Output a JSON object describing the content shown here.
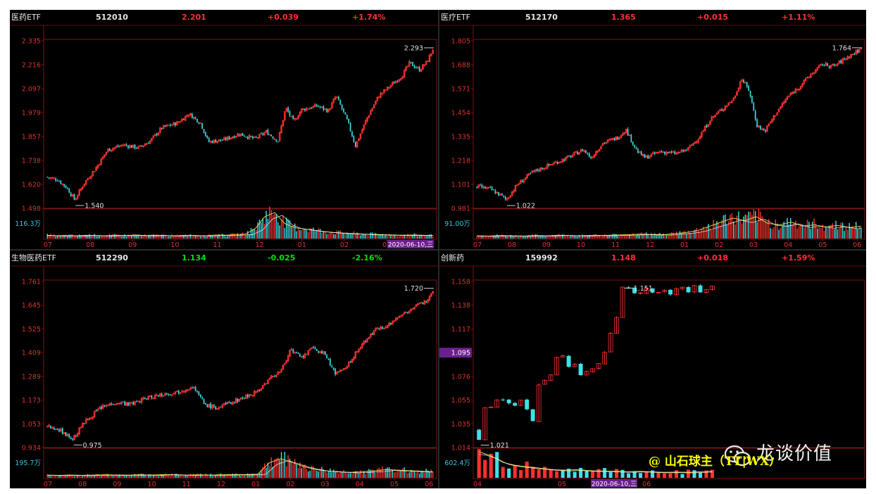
{
  "panels": [
    {
      "name": "医药ETF",
      "code": "512010",
      "price": "2.201",
      "change": "+0.039",
      "pct": "+1.74%",
      "dir": "up",
      "ytick_labels": [
        "2.335",
        "2.216",
        "2.097",
        "1.979",
        "1.857",
        "1.738",
        "1.620",
        "1.498"
      ],
      "yrange": [
        1.498,
        2.335
      ],
      "vol_label": "116.3万",
      "xticks": [
        "07",
        "08",
        "09",
        "10",
        "11",
        "12",
        "01",
        "02",
        "03",
        "04"
      ],
      "date_badge": "2020-06-10,三",
      "low": "1.540",
      "high": "2.293",
      "path": [
        [
          0,
          1.655
        ],
        [
          0.03,
          1.642
        ],
        [
          0.055,
          1.6
        ],
        [
          0.075,
          1.54
        ],
        [
          0.1,
          1.625
        ],
        [
          0.13,
          1.7
        ],
        [
          0.16,
          1.79
        ],
        [
          0.2,
          1.815
        ],
        [
          0.24,
          1.8
        ],
        [
          0.27,
          1.835
        ],
        [
          0.3,
          1.9
        ],
        [
          0.34,
          1.925
        ],
        [
          0.37,
          1.97
        ],
        [
          0.4,
          1.925
        ],
        [
          0.42,
          1.83
        ],
        [
          0.46,
          1.84
        ],
        [
          0.5,
          1.87
        ],
        [
          0.54,
          1.845
        ],
        [
          0.57,
          1.88
        ],
        [
          0.6,
          1.835
        ],
        [
          0.62,
          2.0
        ],
        [
          0.64,
          1.93
        ],
        [
          0.66,
          1.99
        ],
        [
          0.7,
          2.01
        ],
        [
          0.73,
          1.985
        ],
        [
          0.75,
          2.06
        ],
        [
          0.78,
          1.93
        ],
        [
          0.8,
          1.81
        ],
        [
          0.83,
          1.95
        ],
        [
          0.86,
          2.06
        ],
        [
          0.89,
          2.11
        ],
        [
          0.92,
          2.16
        ],
        [
          0.94,
          2.225
        ],
        [
          0.965,
          2.19
        ],
        [
          0.985,
          2.23
        ],
        [
          1.0,
          2.293
        ]
      ],
      "vol": [
        0.12,
        0.1,
        0.11,
        0.1,
        0.12,
        0.11,
        0.1,
        0.12,
        0.11,
        0.13,
        0.1,
        0.12,
        0.11,
        0.1,
        0.12,
        0.11,
        0.1,
        0.13,
        0.12,
        0.14,
        0.16,
        0.35,
        0.8,
        0.95,
        0.55,
        0.4,
        0.35,
        0.3,
        0.25,
        0.22,
        0.2,
        0.18,
        0.16,
        0.15,
        0.14,
        0.13,
        0.12,
        0.13,
        0.12,
        0.11
      ]
    },
    {
      "name": "医疗ETF",
      "code": "512170",
      "price": "1.365",
      "change": "+0.015",
      "pct": "+1.11%",
      "dir": "up",
      "ytick_labels": [
        "1.805",
        "1.688",
        "1.571",
        "1.454",
        "1.335",
        "1.218",
        "1.101",
        "0.981"
      ],
      "yrange": [
        0.981,
        1.805
      ],
      "vol_label": "91.00万",
      "xticks": [
        "07",
        "08",
        "09",
        "10",
        "11",
        "12",
        "01",
        "02",
        "03",
        "04",
        "05",
        "06"
      ],
      "low": "1.022",
      "high": "1.764",
      "path": [
        [
          0,
          1.09
        ],
        [
          0.04,
          1.075
        ],
        [
          0.07,
          1.04
        ],
        [
          0.08,
          1.022
        ],
        [
          0.11,
          1.1
        ],
        [
          0.15,
          1.16
        ],
        [
          0.2,
          1.2
        ],
        [
          0.24,
          1.23
        ],
        [
          0.28,
          1.27
        ],
        [
          0.3,
          1.23
        ],
        [
          0.33,
          1.3
        ],
        [
          0.37,
          1.33
        ],
        [
          0.39,
          1.37
        ],
        [
          0.42,
          1.26
        ],
        [
          0.44,
          1.23
        ],
        [
          0.48,
          1.26
        ],
        [
          0.52,
          1.25
        ],
        [
          0.55,
          1.27
        ],
        [
          0.58,
          1.33
        ],
        [
          0.61,
          1.42
        ],
        [
          0.64,
          1.47
        ],
        [
          0.67,
          1.52
        ],
        [
          0.69,
          1.62
        ],
        [
          0.71,
          1.56
        ],
        [
          0.73,
          1.39
        ],
        [
          0.75,
          1.36
        ],
        [
          0.78,
          1.45
        ],
        [
          0.81,
          1.53
        ],
        [
          0.84,
          1.58
        ],
        [
          0.87,
          1.64
        ],
        [
          0.9,
          1.69
        ],
        [
          0.93,
          1.68
        ],
        [
          0.96,
          1.72
        ],
        [
          1.0,
          1.764
        ]
      ],
      "vol": [
        0.1,
        0.09,
        0.11,
        0.1,
        0.09,
        0.11,
        0.1,
        0.12,
        0.11,
        0.1,
        0.12,
        0.11,
        0.13,
        0.14,
        0.16,
        0.15,
        0.14,
        0.18,
        0.22,
        0.3,
        0.45,
        0.6,
        0.75,
        0.65,
        0.8,
        0.55,
        0.5,
        0.6,
        0.45,
        0.5,
        0.42,
        0.48,
        0.4,
        0.45
      ]
    },
    {
      "name": "生物医药ETF",
      "code": "512290",
      "price": "1.134",
      "change": "-0.025",
      "pct": "-2.16%",
      "dir": "down",
      "ytick_labels": [
        "1.761",
        "1.645",
        "1.525",
        "1.409",
        "1.289",
        "1.173",
        "1.053",
        "0.934"
      ],
      "yrange": [
        0.934,
        1.761
      ],
      "vol_label": "195.7万",
      "xticks": [
        "07",
        "08",
        "09",
        "10",
        "11",
        "12",
        "01",
        "02",
        "03",
        "04",
        "05",
        "06"
      ],
      "low": "0.975",
      "high": "1.720",
      "path": [
        [
          0,
          1.04
        ],
        [
          0.03,
          1.03
        ],
        [
          0.06,
          0.99
        ],
        [
          0.07,
          0.975
        ],
        [
          0.1,
          1.06
        ],
        [
          0.14,
          1.13
        ],
        [
          0.18,
          1.16
        ],
        [
          0.22,
          1.15
        ],
        [
          0.26,
          1.18
        ],
        [
          0.3,
          1.2
        ],
        [
          0.34,
          1.21
        ],
        [
          0.38,
          1.24
        ],
        [
          0.41,
          1.15
        ],
        [
          0.44,
          1.13
        ],
        [
          0.48,
          1.16
        ],
        [
          0.52,
          1.19
        ],
        [
          0.55,
          1.22
        ],
        [
          0.58,
          1.28
        ],
        [
          0.61,
          1.32
        ],
        [
          0.63,
          1.42
        ],
        [
          0.66,
          1.38
        ],
        [
          0.69,
          1.43
        ],
        [
          0.72,
          1.4
        ],
        [
          0.75,
          1.3
        ],
        [
          0.77,
          1.32
        ],
        [
          0.8,
          1.4
        ],
        [
          0.83,
          1.48
        ],
        [
          0.86,
          1.53
        ],
        [
          0.89,
          1.55
        ],
        [
          0.92,
          1.6
        ],
        [
          0.95,
          1.63
        ],
        [
          0.98,
          1.66
        ],
        [
          1.0,
          1.72
        ]
      ],
      "vol": [
        0.1,
        0.09,
        0.1,
        0.09,
        0.1,
        0.11,
        0.1,
        0.1,
        0.11,
        0.1,
        0.12,
        0.11,
        0.1,
        0.11,
        0.1,
        0.11,
        0.12,
        0.12,
        0.13,
        0.55,
        0.7,
        0.55,
        0.4,
        0.3,
        0.25,
        0.22,
        0.2,
        0.22,
        0.25,
        0.3,
        0.28,
        0.26,
        0.24,
        0.22
      ]
    },
    {
      "name": "创新药",
      "code": "159992",
      "price": "1.148",
      "change": "+0.018",
      "pct": "+1.59%",
      "dir": "up",
      "ytick_labels": [
        "1.158",
        "1.138",
        "1.117",
        "1.095",
        "1.076",
        "1.055",
        "1.035",
        "1.014"
      ],
      "yrange": [
        1.014,
        1.158
      ],
      "vol_label": "602.4万",
      "xticks": [
        "04",
        "05",
        "06"
      ],
      "date_badge": "2020-06-10,三",
      "low": "1.021",
      "high": "1.151",
      "hilite": "1.095",
      "path": [
        [
          0,
          1.03
        ],
        [
          0.02,
          1.021
        ],
        [
          0.05,
          1.045
        ],
        [
          0.09,
          1.055
        ],
        [
          0.13,
          1.06
        ],
        [
          0.16,
          1.05
        ],
        [
          0.19,
          1.058
        ],
        [
          0.22,
          1.045
        ],
        [
          0.25,
          1.035
        ],
        [
          0.28,
          1.075
        ],
        [
          0.31,
          1.07
        ],
        [
          0.33,
          1.085
        ],
        [
          0.36,
          1.1
        ],
        [
          0.39,
          1.08
        ],
        [
          0.42,
          1.09
        ],
        [
          0.45,
          1.075
        ],
        [
          0.48,
          1.085
        ],
        [
          0.51,
          1.078
        ],
        [
          0.54,
          1.095
        ],
        [
          0.57,
          1.105
        ],
        [
          0.6,
          1.13
        ],
        [
          0.62,
          1.151
        ]
      ],
      "vol": [
        0.95,
        0.8,
        0.55,
        0.45,
        0.4,
        0.35,
        0.3,
        0.28,
        0.3,
        0.26,
        0.25,
        0.24,
        0.22,
        0.24,
        0.22,
        0.2,
        0.21,
        0.2,
        0.22,
        0.24
      ]
    }
  ],
  "watermark": "龙谈价值",
  "credit": "@ 山石球主（TT|WX）"
}
